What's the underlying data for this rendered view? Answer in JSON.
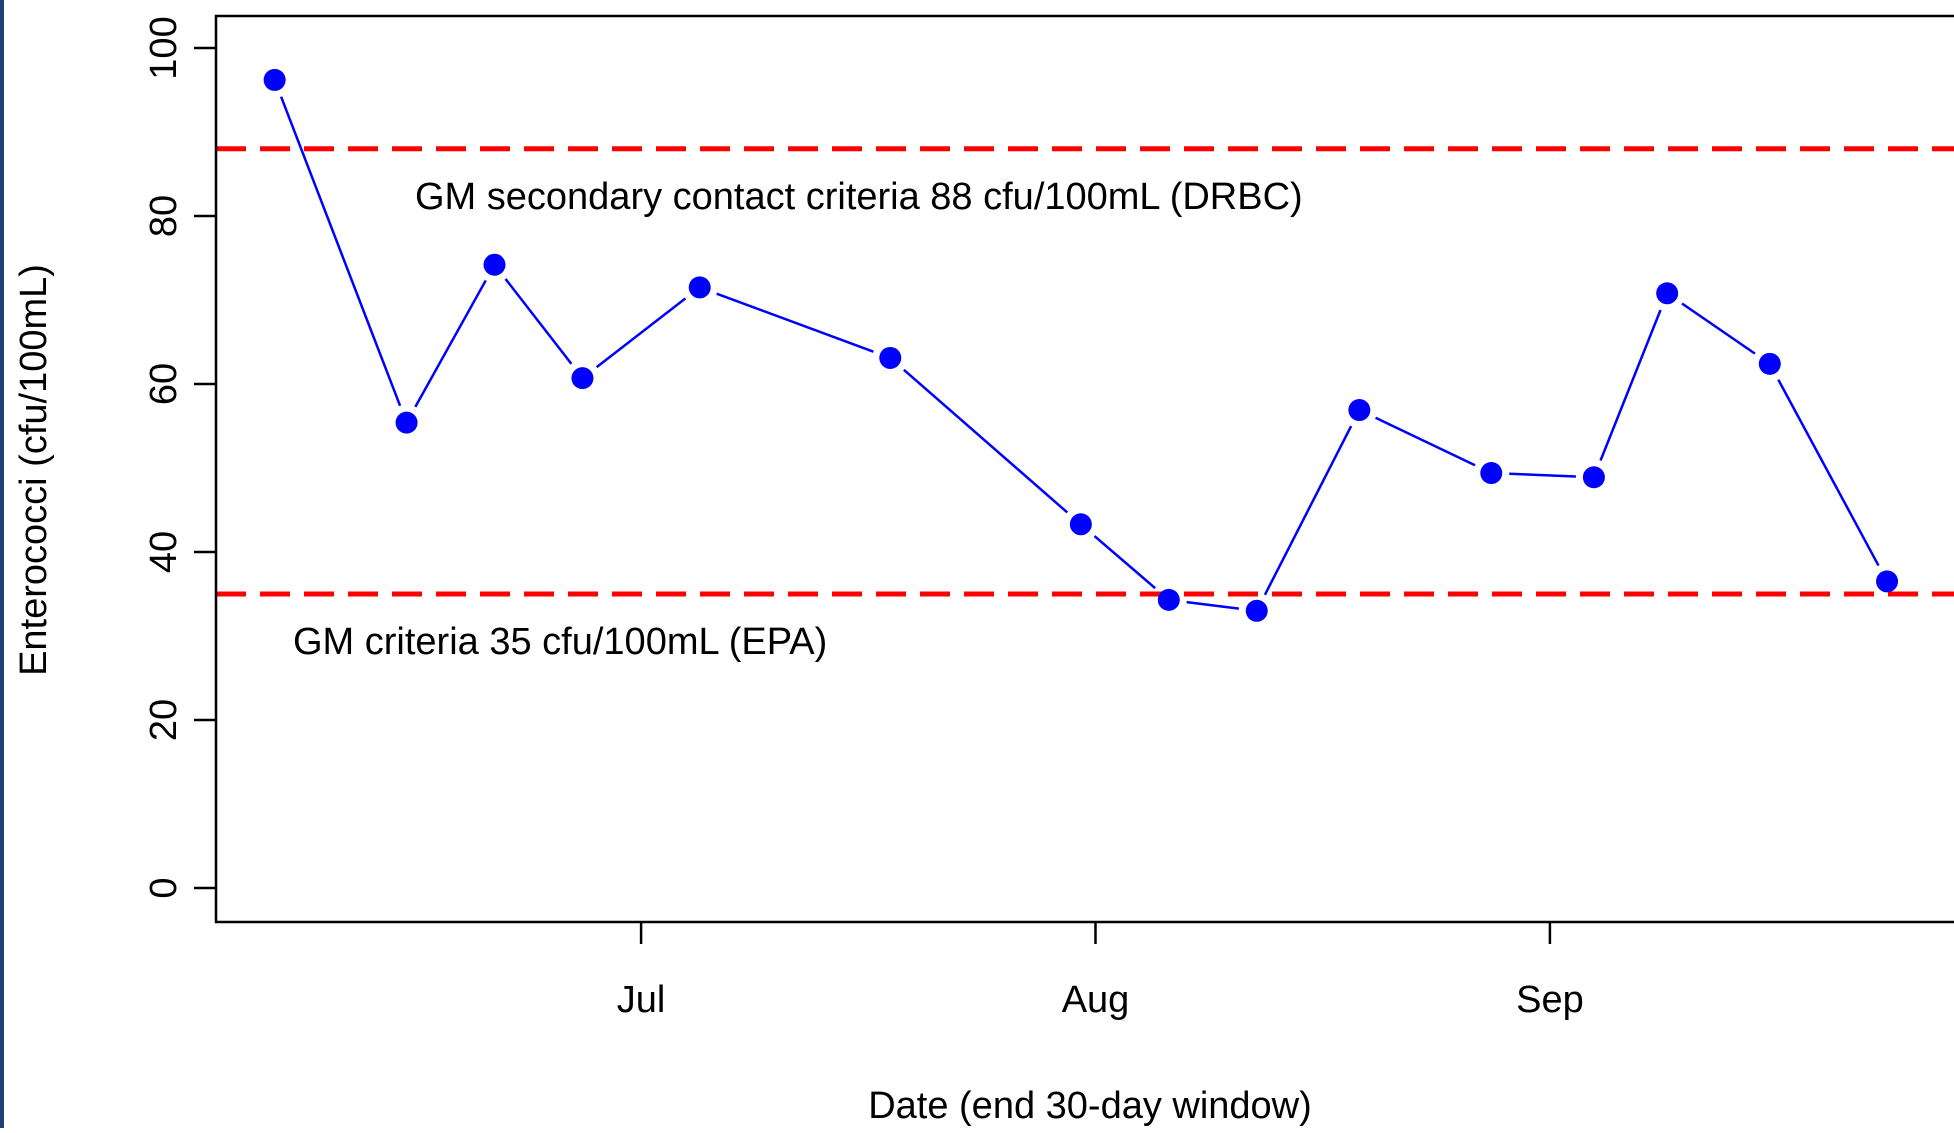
{
  "colors": {
    "series": "#0000ff",
    "reference_line": "#ff0000",
    "axis": "#000000",
    "frame_border": "#1f3f7a"
  },
  "chart_data": {
    "type": "line",
    "title": "",
    "xlabel": "Date (end 30-day window)",
    "ylabel": "Enterococci (cfu/100mL)",
    "ylim": [
      0,
      100
    ],
    "yticks": [
      0,
      20,
      40,
      60,
      80,
      100
    ],
    "xlim": [
      "2019-06-02",
      "2019-09-30"
    ],
    "xticks": [
      {
        "date": "2019-07-01",
        "label": "Jul"
      },
      {
        "date": "2019-08-01",
        "label": "Aug"
      },
      {
        "date": "2019-09-01",
        "label": "Sep"
      }
    ],
    "grid": false,
    "legend": "none",
    "series": [
      {
        "x": [
          "2019-06-06",
          "2019-06-15",
          "2019-06-21",
          "2019-06-27",
          "2019-07-05",
          "2019-07-18",
          "2019-07-31",
          "2019-08-06",
          "2019-08-12",
          "2019-08-19",
          "2019-08-28",
          "2019-09-04",
          "2019-09-09",
          "2019-09-16",
          "2019-09-24"
        ],
        "y": [
          96.2,
          55.4,
          74.2,
          60.7,
          71.5,
          63.1,
          43.3,
          34.3,
          33.0,
          56.9,
          49.4,
          48.9,
          70.8,
          62.4,
          36.5
        ]
      }
    ],
    "reference_lines": [
      {
        "y": 88,
        "label": "GM secondary contact criteria 88 cfu/100mL (DRBC)"
      },
      {
        "y": 35,
        "label": "GM criteria 35 cfu/100mL (EPA)"
      }
    ]
  }
}
